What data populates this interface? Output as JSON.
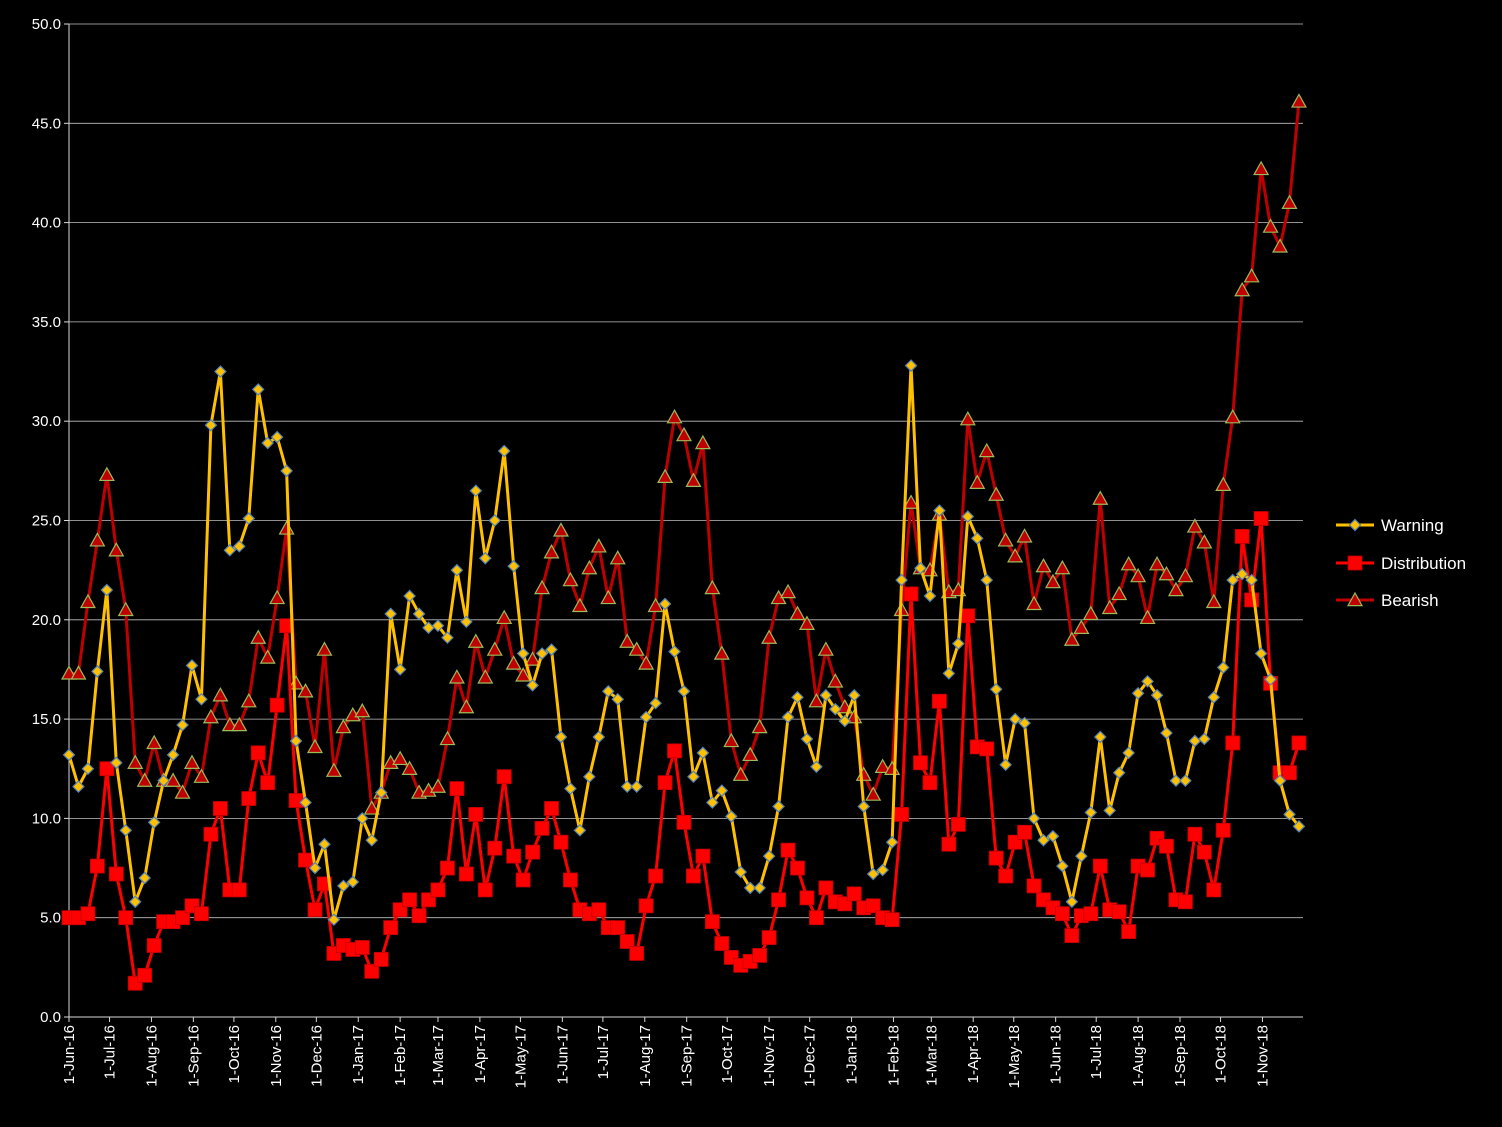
{
  "chart_data": {
    "type": "line",
    "x": [
      "2016-06-01",
      "2016-06-08",
      "2016-06-15",
      "2016-06-22",
      "2016-06-29",
      "2016-07-06",
      "2016-07-13",
      "2016-07-20",
      "2016-07-27",
      "2016-08-03",
      "2016-08-10",
      "2016-08-17",
      "2016-08-24",
      "2016-08-31",
      "2016-09-07",
      "2016-09-14",
      "2016-09-21",
      "2016-09-28",
      "2016-10-05",
      "2016-10-12",
      "2016-10-19",
      "2016-10-26",
      "2016-11-02",
      "2016-11-09",
      "2016-11-16",
      "2016-11-23",
      "2016-11-30",
      "2016-12-07",
      "2016-12-14",
      "2016-12-21",
      "2016-12-28",
      "2017-01-04",
      "2017-01-11",
      "2017-01-18",
      "2017-01-25",
      "2017-02-01",
      "2017-02-08",
      "2017-02-15",
      "2017-02-22",
      "2017-03-01",
      "2017-03-08",
      "2017-03-15",
      "2017-03-22",
      "2017-03-29",
      "2017-04-05",
      "2017-04-12",
      "2017-04-19",
      "2017-04-26",
      "2017-05-03",
      "2017-05-10",
      "2017-05-17",
      "2017-05-24",
      "2017-05-31",
      "2017-06-07",
      "2017-06-14",
      "2017-06-21",
      "2017-06-28",
      "2017-07-05",
      "2017-07-12",
      "2017-07-19",
      "2017-07-26",
      "2017-08-02",
      "2017-08-09",
      "2017-08-16",
      "2017-08-23",
      "2017-08-30",
      "2017-09-06",
      "2017-09-13",
      "2017-09-20",
      "2017-09-27",
      "2017-10-04",
      "2017-10-11",
      "2017-10-18",
      "2017-10-25",
      "2017-11-01",
      "2017-11-08",
      "2017-11-15",
      "2017-11-22",
      "2017-11-29",
      "2017-12-06",
      "2017-12-13",
      "2017-12-20",
      "2017-12-27",
      "2018-01-03",
      "2018-01-10",
      "2018-01-17",
      "2018-01-24",
      "2018-01-31",
      "2018-02-07",
      "2018-02-14",
      "2018-02-21",
      "2018-02-28",
      "2018-03-07",
      "2018-03-14",
      "2018-03-21",
      "2018-03-28",
      "2018-04-04",
      "2018-04-11",
      "2018-04-18",
      "2018-04-25",
      "2018-05-02",
      "2018-05-09",
      "2018-05-16",
      "2018-05-23",
      "2018-05-30",
      "2018-06-06",
      "2018-06-13",
      "2018-06-20",
      "2018-06-27",
      "2018-07-04",
      "2018-07-11",
      "2018-07-18",
      "2018-07-25",
      "2018-08-01",
      "2018-08-08",
      "2018-08-15",
      "2018-08-22",
      "2018-08-29",
      "2018-09-05",
      "2018-09-12",
      "2018-09-19",
      "2018-09-26",
      "2018-10-03",
      "2018-10-10",
      "2018-10-17",
      "2018-10-24",
      "2018-10-31",
      "2018-11-07",
      "2018-11-14",
      "2018-11-21",
      "2018-11-28"
    ],
    "x_tick_labels": [
      "1-Jun-16",
      "1-Jul-16",
      "1-Aug-16",
      "1-Sep-16",
      "1-Oct-16",
      "1-Nov-16",
      "1-Dec-16",
      "1-Jan-17",
      "1-Feb-17",
      "1-Mar-17",
      "1-Apr-17",
      "1-May-17",
      "1-Jun-17",
      "1-Jul-17",
      "1-Aug-17",
      "1-Sep-17",
      "1-Oct-17",
      "1-Nov-17",
      "1-Dec-17",
      "1-Jan-18",
      "1-Feb-18",
      "1-Mar-18",
      "1-Apr-18",
      "1-May-18",
      "1-Jun-18",
      "1-Jul-18",
      "1-Aug-18",
      "1-Sep-18",
      "1-Oct-18",
      "1-Nov-18"
    ],
    "x_tick_dates": [
      "2016-06-01",
      "2016-07-01",
      "2016-08-01",
      "2016-09-01",
      "2016-10-01",
      "2016-11-01",
      "2016-12-01",
      "2017-01-01",
      "2017-02-01",
      "2017-03-01",
      "2017-04-01",
      "2017-05-01",
      "2017-06-01",
      "2017-07-01",
      "2017-08-01",
      "2017-09-01",
      "2017-10-01",
      "2017-11-01",
      "2017-12-01",
      "2018-01-01",
      "2018-02-01",
      "2018-03-01",
      "2018-04-01",
      "2018-05-01",
      "2018-06-01",
      "2018-07-01",
      "2018-08-01",
      "2018-09-01",
      "2018-10-01",
      "2018-11-01"
    ],
    "y_tick_labels": [
      "0.0",
      "5.0",
      "10.0",
      "15.0",
      "20.0",
      "25.0",
      "30.0",
      "35.0",
      "40.0",
      "45.0",
      "50.0"
    ],
    "ylim": [
      0,
      50
    ],
    "xlim": [
      "2016-06-01",
      "2018-12-01"
    ],
    "grid": true,
    "legend_position": "right",
    "series": [
      {
        "name": "Warning",
        "color": "#FFC000",
        "marker": "diamond",
        "values": [
          13.2,
          11.6,
          12.5,
          17.4,
          21.5,
          12.8,
          9.4,
          5.8,
          7.0,
          9.8,
          11.9,
          13.2,
          14.7,
          17.7,
          16.0,
          29.8,
          32.5,
          23.5,
          23.7,
          25.1,
          31.6,
          28.9,
          29.2,
          27.5,
          13.9,
          10.8,
          7.5,
          8.7,
          4.9,
          6.6,
          6.8,
          10.0,
          8.9,
          11.3,
          20.3,
          17.5,
          21.2,
          20.3,
          19.6,
          19.7,
          19.1,
          22.5,
          19.9,
          26.5,
          23.1,
          25.0,
          28.5,
          22.7,
          18.3,
          16.7,
          18.3,
          18.5,
          14.1,
          11.5,
          9.4,
          12.1,
          14.1,
          16.4,
          16.0,
          11.6,
          11.6,
          15.1,
          15.8,
          20.8,
          18.4,
          16.4,
          12.1,
          13.3,
          10.8,
          11.4,
          10.1,
          7.3,
          6.5,
          6.5,
          8.1,
          10.6,
          15.1,
          16.1,
          14.0,
          12.6,
          16.2,
          15.5,
          14.9,
          16.2,
          10.6,
          7.2,
          7.4,
          8.8,
          22.0,
          32.8,
          22.6,
          21.2,
          25.5,
          17.3,
          18.8,
          25.2,
          24.1,
          22.0,
          16.5,
          12.7,
          15.0,
          14.8,
          10.0,
          8.9,
          9.1,
          7.6,
          5.8,
          8.1,
          10.3,
          14.1,
          10.4,
          12.3,
          13.3,
          16.3,
          16.9,
          16.2,
          14.3,
          11.9,
          11.9,
          13.9,
          14.0,
          16.1,
          17.6,
          22.0,
          22.3,
          22.0,
          18.3,
          17.0,
          11.9,
          10.2,
          9.6
        ]
      },
      {
        "name": "Distribution",
        "color": "#FF0000",
        "marker": "square",
        "values": [
          5.0,
          5.0,
          5.2,
          7.6,
          12.5,
          7.2,
          5.0,
          1.7,
          2.1,
          3.6,
          4.8,
          4.8,
          5.0,
          5.6,
          5.2,
          9.2,
          10.5,
          6.4,
          6.4,
          11.0,
          13.3,
          11.8,
          15.7,
          19.7,
          10.9,
          7.9,
          5.4,
          6.7,
          3.2,
          3.6,
          3.4,
          3.5,
          2.3,
          2.9,
          4.5,
          5.4,
          5.9,
          5.1,
          5.9,
          6.4,
          7.5,
          11.5,
          7.2,
          10.2,
          6.4,
          8.5,
          12.1,
          8.1,
          6.9,
          8.3,
          9.5,
          10.5,
          8.8,
          6.9,
          5.4,
          5.2,
          5.4,
          4.5,
          4.5,
          3.8,
          3.2,
          5.6,
          7.1,
          11.8,
          13.4,
          9.8,
          7.1,
          8.1,
          4.8,
          3.7,
          3.0,
          2.6,
          2.8,
          3.1,
          4.0,
          5.9,
          8.4,
          7.5,
          6.0,
          5.0,
          6.5,
          5.8,
          5.7,
          6.2,
          5.5,
          5.6,
          5.0,
          4.9,
          10.2,
          21.3,
          12.8,
          11.8,
          15.9,
          8.7,
          9.7,
          20.2,
          13.6,
          13.5,
          8.0,
          7.1,
          8.8,
          9.3,
          6.6,
          5.9,
          5.5,
          5.2,
          4.1,
          5.1,
          5.2,
          7.6,
          5.4,
          5.3,
          4.3,
          7.6,
          7.4,
          9.0,
          8.6,
          5.9,
          5.8,
          9.2,
          8.3,
          6.4,
          9.4,
          13.8,
          24.2,
          21.0,
          25.1,
          16.8,
          12.3,
          12.3,
          13.8
        ]
      },
      {
        "name": "Bearish",
        "color": "#C00000",
        "marker": "triangle",
        "values": [
          17.3,
          17.3,
          20.9,
          24.0,
          27.3,
          23.5,
          20.5,
          12.8,
          11.9,
          13.8,
          11.9,
          11.9,
          11.3,
          12.8,
          12.1,
          15.1,
          16.2,
          14.7,
          14.7,
          15.9,
          19.1,
          18.1,
          21.1,
          24.6,
          16.8,
          16.4,
          13.6,
          18.5,
          12.4,
          14.6,
          15.2,
          15.4,
          10.5,
          11.3,
          12.8,
          13.0,
          12.5,
          11.3,
          11.4,
          11.6,
          14.0,
          17.1,
          15.6,
          18.9,
          17.1,
          18.5,
          20.1,
          17.8,
          17.2,
          18.0,
          21.6,
          23.4,
          24.5,
          22.0,
          20.7,
          22.6,
          23.7,
          21.1,
          23.1,
          18.9,
          18.5,
          17.8,
          20.7,
          27.2,
          30.2,
          29.3,
          27.0,
          28.9,
          21.6,
          18.3,
          13.9,
          12.2,
          13.2,
          14.6,
          19.1,
          21.1,
          21.4,
          20.3,
          19.8,
          15.9,
          18.5,
          16.9,
          15.6,
          15.1,
          12.2,
          11.2,
          12.6,
          12.5,
          20.5,
          25.9,
          22.6,
          22.5,
          25.3,
          21.4,
          21.5,
          30.1,
          26.9,
          28.5,
          26.3,
          24.0,
          23.2,
          24.2,
          20.8,
          22.7,
          21.9,
          22.6,
          19.0,
          19.6,
          20.3,
          26.1,
          20.6,
          21.3,
          22.8,
          22.2,
          20.1,
          22.8,
          22.3,
          21.5,
          22.2,
          24.7,
          23.9,
          20.9,
          26.8,
          30.2,
          36.6,
          37.3,
          42.7,
          39.8,
          38.8,
          41.0,
          46.1
        ]
      }
    ]
  }
}
